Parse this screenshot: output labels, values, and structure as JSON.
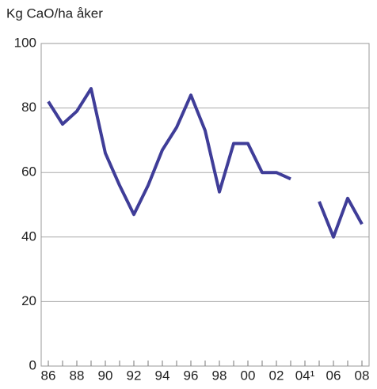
{
  "chart_data": {
    "type": "line",
    "title": "Kg CaO/ha åker",
    "categories": [
      "86",
      null,
      "88",
      null,
      "90",
      null,
      "92",
      null,
      "94",
      null,
      "96",
      null,
      "98",
      null,
      "00",
      null,
      "02",
      null,
      "04¹",
      null,
      "06",
      null,
      "08"
    ],
    "series": [
      {
        "color": "#3f3d98",
        "values": [
          82,
          75,
          79,
          86,
          66,
          56,
          47,
          56,
          67,
          74,
          84,
          73,
          54,
          69,
          69,
          60,
          60,
          58,
          null,
          51,
          40,
          52,
          44
        ]
      }
    ],
    "ylim": [
      0,
      100
    ],
    "yticks": [
      0,
      20,
      40,
      60,
      80,
      100
    ],
    "grid": true
  }
}
